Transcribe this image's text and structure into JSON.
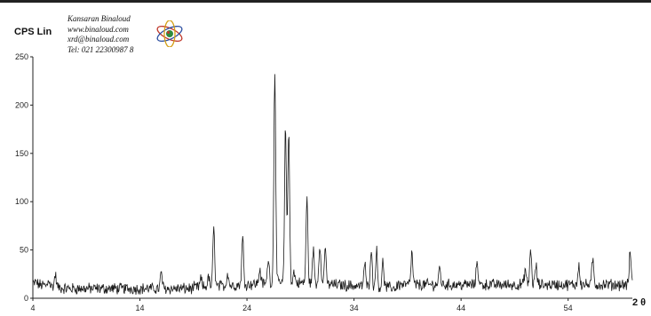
{
  "header": {
    "company_lines": [
      "Kansaran Binaloud",
      "www.binaloud.com",
      "xrd@binaloud.com",
      "Tel: 021   22300987  8"
    ]
  },
  "chart_data": {
    "type": "line",
    "title": "",
    "ylabel": "CPS Lin",
    "xlabel": "2 θ",
    "xlim": [
      4,
      60
    ],
    "ylim": [
      0,
      250
    ],
    "xticks": [
      4,
      14,
      24,
      34,
      44,
      54
    ],
    "yticks": [
      0,
      50,
      100,
      150,
      200,
      250
    ],
    "grid": false,
    "line_color": "#1a1a1a",
    "baseline": 8,
    "peaks": [
      {
        "x": 4.3,
        "y": 15
      },
      {
        "x": 5.5,
        "y": 18
      },
      {
        "x": 6.1,
        "y": 22
      },
      {
        "x": 16.0,
        "y": 25
      },
      {
        "x": 19.7,
        "y": 18
      },
      {
        "x": 20.4,
        "y": 20
      },
      {
        "x": 20.9,
        "y": 70
      },
      {
        "x": 22.2,
        "y": 25
      },
      {
        "x": 23.6,
        "y": 60
      },
      {
        "x": 25.2,
        "y": 28
      },
      {
        "x": 26.0,
        "y": 40
      },
      {
        "x": 26.6,
        "y": 233
      },
      {
        "x": 27.6,
        "y": 175
      },
      {
        "x": 27.9,
        "y": 170
      },
      {
        "x": 28.4,
        "y": 25
      },
      {
        "x": 29.6,
        "y": 100
      },
      {
        "x": 30.2,
        "y": 48
      },
      {
        "x": 30.8,
        "y": 55
      },
      {
        "x": 31.3,
        "y": 50
      },
      {
        "x": 35.0,
        "y": 35
      },
      {
        "x": 35.6,
        "y": 50
      },
      {
        "x": 36.1,
        "y": 48
      },
      {
        "x": 36.7,
        "y": 35
      },
      {
        "x": 39.4,
        "y": 45
      },
      {
        "x": 42.0,
        "y": 30
      },
      {
        "x": 45.5,
        "y": 38
      },
      {
        "x": 50.0,
        "y": 28
      },
      {
        "x": 50.5,
        "y": 48
      },
      {
        "x": 51.0,
        "y": 32
      },
      {
        "x": 55.0,
        "y": 33
      },
      {
        "x": 56.3,
        "y": 38
      },
      {
        "x": 59.8,
        "y": 46
      }
    ]
  }
}
